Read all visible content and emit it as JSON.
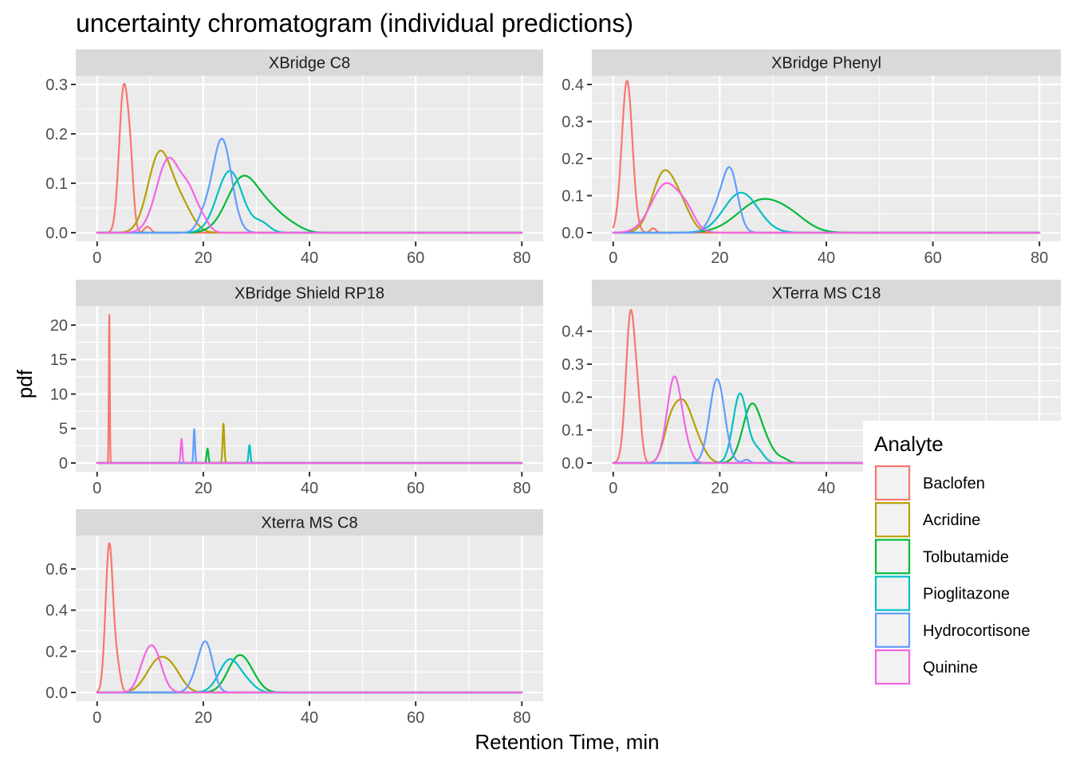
{
  "chart_data": {
    "type": "line",
    "title": "uncertainty chromatogram (individual predictions)",
    "xlabel": "Retention Time, min",
    "ylabel": "pdf",
    "xlim": [
      0,
      80
    ],
    "x_ticks": [
      0,
      20,
      40,
      60,
      80
    ],
    "grid": true,
    "legend": {
      "title": "Analyte",
      "placement": "bottom-right",
      "entries": [
        "Baclofen",
        "Acridine",
        "Tolbutamide",
        "Pioglitazone",
        "Hydrocortisone",
        "Quinine"
      ]
    },
    "colors": {
      "Baclofen": "#F8766D",
      "Acridine": "#B79F00",
      "Tolbutamide": "#00BA38",
      "Pioglitazone": "#00BFC4",
      "Hydrocortisone": "#619CFF",
      "Quinine": "#F564E3"
    },
    "panels": [
      {
        "label": "XBridge C8",
        "ylim": [
          0,
          0.3
        ],
        "y_ticks": [
          0.0,
          0.1,
          0.2,
          0.3
        ],
        "y_tick_labels": [
          "0.0",
          "0.1",
          "0.2",
          "0.3"
        ],
        "series": [
          {
            "name": "Baclofen",
            "peaks": [
              [
                5.0,
                0.29,
                0.85
              ],
              [
                6.3,
                0.1,
                0.6
              ],
              [
                9.5,
                0.012,
                0.6
              ]
            ]
          },
          {
            "name": "Acridine",
            "peaks": [
              [
                11.8,
                0.16,
                2.2
              ],
              [
                16.0,
                0.05,
                2.0
              ]
            ]
          },
          {
            "name": "Tolbutamide",
            "peaks": [
              [
                27.5,
                0.112,
                3.0
              ],
              [
                33.0,
                0.035,
                2.5
              ],
              [
                37.0,
                0.01,
                2.0
              ]
            ]
          },
          {
            "name": "Pioglitazone",
            "peaks": [
              [
                25.0,
                0.125,
                2.4
              ],
              [
                31.0,
                0.018,
                1.5
              ]
            ]
          },
          {
            "name": "Hydrocortisone",
            "peaks": [
              [
                23.5,
                0.19,
                1.8
              ],
              [
                20.0,
                0.025,
                1.2
              ]
            ]
          },
          {
            "name": "Quinine",
            "peaks": [
              [
                13.5,
                0.15,
                2.3
              ],
              [
                17.5,
                0.06,
                1.5
              ],
              [
                20.0,
                0.02,
                1.2
              ]
            ]
          }
        ]
      },
      {
        "label": "XBridge Phenyl",
        "ylim": [
          0,
          0.4
        ],
        "y_ticks": [
          0.0,
          0.1,
          0.2,
          0.3,
          0.4
        ],
        "y_tick_labels": [
          "0.0",
          "0.1",
          "0.2",
          "0.3",
          "0.4"
        ],
        "series": [
          {
            "name": "Baclofen",
            "peaks": [
              [
                2.6,
                0.41,
                1.0
              ],
              [
                7.5,
                0.012,
                0.5
              ]
            ]
          },
          {
            "name": "Acridine",
            "peaks": [
              [
                9.5,
                0.16,
                2.2
              ],
              [
                13.0,
                0.05,
                1.8
              ]
            ]
          },
          {
            "name": "Tolbutamide",
            "peaks": [
              [
                28.0,
                0.088,
                4.5
              ],
              [
                34.0,
                0.02,
                3.0
              ]
            ]
          },
          {
            "name": "Pioglitazone",
            "peaks": [
              [
                24.0,
                0.108,
                3.2
              ]
            ]
          },
          {
            "name": "Hydrocortisone",
            "peaks": [
              [
                22.0,
                0.16,
                1.4
              ],
              [
                19.5,
                0.06,
                1.5
              ]
            ]
          },
          {
            "name": "Quinine",
            "peaks": [
              [
                10.0,
                0.133,
                2.8
              ],
              [
                14.0,
                0.03,
                1.5
              ]
            ]
          }
        ]
      },
      {
        "label": "XBridge Shield RP18",
        "ylim": [
          0,
          21.5
        ],
        "y_ticks": [
          0,
          5,
          10,
          15,
          20
        ],
        "y_tick_labels": [
          "0",
          "5",
          "10",
          "15",
          "20"
        ],
        "series": [
          {
            "name": "Baclofen",
            "peaks": [
              [
                2.3,
                21.5,
                0.09
              ]
            ]
          },
          {
            "name": "Acridine",
            "peaks": [
              [
                23.8,
                5.7,
                0.16
              ]
            ]
          },
          {
            "name": "Tolbutamide",
            "peaks": [
              [
                20.8,
                2.1,
                0.17
              ]
            ]
          },
          {
            "name": "Pioglitazone",
            "peaks": [
              [
                28.7,
                2.6,
                0.17
              ]
            ]
          },
          {
            "name": "Hydrocortisone",
            "peaks": [
              [
                18.3,
                4.9,
                0.14
              ]
            ]
          },
          {
            "name": "Quinine",
            "peaks": [
              [
                15.9,
                3.5,
                0.16
              ]
            ]
          }
        ]
      },
      {
        "label": "XTerra MS C18",
        "ylim": [
          0,
          0.45
        ],
        "y_ticks": [
          0.0,
          0.1,
          0.2,
          0.3,
          0.4
        ],
        "y_tick_labels": [
          "0.0",
          "0.1",
          "0.2",
          "0.3",
          "0.4"
        ],
        "series": [
          {
            "name": "Baclofen",
            "peaks": [
              [
                3.3,
                0.46,
                0.9
              ],
              [
                4.8,
                0.1,
                0.6
              ]
            ]
          },
          {
            "name": "Acridine",
            "peaks": [
              [
                13.0,
                0.18,
                1.8
              ],
              [
                10.5,
                0.07,
                1.2
              ],
              [
                16.0,
                0.04,
                1.5
              ]
            ]
          },
          {
            "name": "Tolbutamide",
            "peaks": [
              [
                26.0,
                0.175,
                1.7
              ],
              [
                29.0,
                0.04,
                1.5
              ],
              [
                32.0,
                0.01,
                1.0
              ]
            ]
          },
          {
            "name": "Pioglitazone",
            "peaks": [
              [
                23.8,
                0.21,
                1.3
              ],
              [
                27.0,
                0.04,
                1.2
              ]
            ]
          },
          {
            "name": "Hydrocortisone",
            "peaks": [
              [
                19.5,
                0.255,
                1.4
              ],
              [
                25.0,
                0.01,
                0.6
              ]
            ]
          },
          {
            "name": "Quinine",
            "peaks": [
              [
                11.5,
                0.262,
                1.4
              ],
              [
                14.0,
                0.02,
                1.0
              ]
            ]
          }
        ]
      },
      {
        "label": "Xterra MS C8",
        "ylim": [
          0,
          0.72
        ],
        "y_ticks": [
          0.0,
          0.2,
          0.4,
          0.6
        ],
        "y_tick_labels": [
          "0.0",
          "0.2",
          "0.4",
          "0.6"
        ],
        "series": [
          {
            "name": "Baclofen",
            "peaks": [
              [
                2.3,
                0.72,
                0.7
              ],
              [
                3.8,
                0.12,
                0.6
              ]
            ]
          },
          {
            "name": "Acridine",
            "peaks": [
              [
                11.5,
                0.15,
                2.2
              ],
              [
                14.5,
                0.07,
                1.8
              ]
            ]
          },
          {
            "name": "Tolbutamide",
            "peaks": [
              [
                26.5,
                0.16,
                2.0
              ],
              [
                29.0,
                0.05,
                1.8
              ]
            ]
          },
          {
            "name": "Pioglitazone",
            "peaks": [
              [
                25.0,
                0.16,
                2.0
              ],
              [
                28.5,
                0.03,
                1.5
              ]
            ]
          },
          {
            "name": "Hydrocortisone",
            "peaks": [
              [
                20.5,
                0.235,
                1.3
              ],
              [
                18.5,
                0.05,
                1.2
              ]
            ]
          },
          {
            "name": "Quinine",
            "peaks": [
              [
                10.5,
                0.215,
                1.6
              ],
              [
                8.5,
                0.05,
                1.2
              ]
            ]
          }
        ]
      }
    ]
  }
}
